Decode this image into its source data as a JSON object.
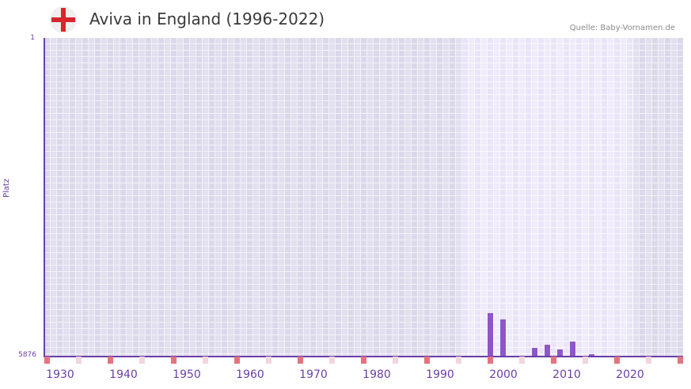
{
  "header": {
    "title": "Aviva in England (1996-2022)",
    "source": "Quelle: Baby-Vornamen.de",
    "flag_icon": "england-flag-icon"
  },
  "colors": {
    "bar": "#8e56c8",
    "axis": "#6a3fa8",
    "marker_decade": "#e5737f",
    "marker_half": "#f3d5de",
    "flag_red": "#d7262d"
  },
  "chart_data": {
    "type": "bar",
    "title": "Aviva in England (1996-2022)",
    "xlabel": "",
    "ylabel": "Platz",
    "y_inverted": true,
    "ylim": [
      1,
      5876
    ],
    "y_ticks": [
      "1",
      "5876"
    ],
    "xlim": [
      1928,
      2028
    ],
    "x_ticks": [
      "1930",
      "1940",
      "1950",
      "1960",
      "1970",
      "1980",
      "1990",
      "2000",
      "2010",
      "2020"
    ],
    "highlight_range": [
      1994,
      2020
    ],
    "grid": true,
    "x": [
      1998,
      2000,
      2005,
      2007,
      2009,
      2011,
      2014
    ],
    "values": [
      5087,
      5204,
      5737,
      5671,
      5766,
      5613,
      5854
    ],
    "source": "Quelle: Baby-Vornamen.de"
  },
  "axis": {
    "ylabel": "Platz",
    "ytop": "1",
    "ybottom": "5876",
    "xticks": [
      "1930",
      "1940",
      "1950",
      "1960",
      "1970",
      "1980",
      "1990",
      "2000",
      "2010",
      "2020"
    ]
  }
}
